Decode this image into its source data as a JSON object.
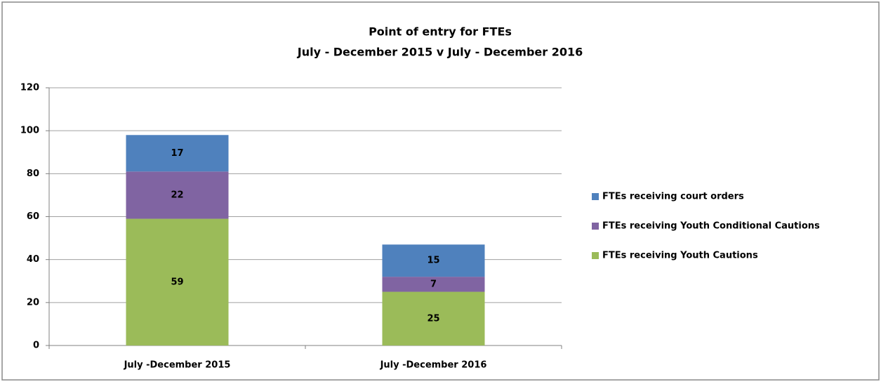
{
  "chart_data": {
    "type": "stacked_bar",
    "title": "Point of entry for FTEs",
    "subtitle": "July - December 2015 v July - December 2016",
    "categories": [
      "July -December 2015",
      "July -December 2016"
    ],
    "series": [
      {
        "name": "FTEs receiving Youth Cautions",
        "color": "#9bbb59",
        "values": [
          59,
          25
        ]
      },
      {
        "name": "FTEs receiving Youth Conditional Cautions",
        "color": "#8064a2",
        "values": [
          22,
          7
        ]
      },
      {
        "name": "FTEs receiving court orders",
        "color": "#4f81bd",
        "values": [
          17,
          15
        ]
      }
    ],
    "ylim": [
      0,
      120
    ],
    "yticks": [
      0,
      20,
      40,
      60,
      80,
      100,
      120
    ],
    "grid": true,
    "legend": "right"
  }
}
